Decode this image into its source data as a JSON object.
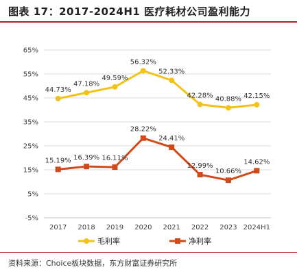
{
  "header": {
    "title": "图表 17：2017-2024H1 医疗耗材公司盈利能力"
  },
  "footer": {
    "source": "资料来源：Choice板块数据，东方财富证券研究所"
  },
  "colors": {
    "gross": "#f2c314",
    "net": "#d2491a",
    "accent": "#b01e23",
    "grid": "#d9d9d9"
  },
  "chart_data": {
    "type": "line",
    "categories": [
      "2017",
      "2018",
      "2019",
      "2020",
      "2021",
      "2022",
      "2023",
      "2024H1"
    ],
    "ylim": [
      -5,
      65
    ],
    "yticks": [
      -5,
      5,
      15,
      25,
      35,
      45,
      55,
      65
    ],
    "ytick_labels": [
      "-5%",
      "5%",
      "15%",
      "25%",
      "35%",
      "45%",
      "55%",
      "65%"
    ],
    "grid": true,
    "legend_position": "bottom",
    "series": [
      {
        "name": "毛利率",
        "color": "#f2c314",
        "marker": "circle",
        "values": [
          44.73,
          47.18,
          49.59,
          56.32,
          52.33,
          42.28,
          40.88,
          42.15
        ],
        "labels": [
          "44.73%",
          "47.18%",
          "49.59%",
          "56.32%",
          "52.33%",
          "42.28%",
          "40.88%",
          "42.15%"
        ]
      },
      {
        "name": "净利率",
        "color": "#d2491a",
        "marker": "square",
        "values": [
          15.19,
          16.39,
          16.11,
          28.22,
          24.41,
          12.99,
          10.66,
          14.62
        ],
        "labels": [
          "15.19%",
          "16.39%",
          "16.11%",
          "28.22%",
          "24.41%",
          "12.99%",
          "10.66%",
          "14.62%"
        ]
      }
    ]
  }
}
